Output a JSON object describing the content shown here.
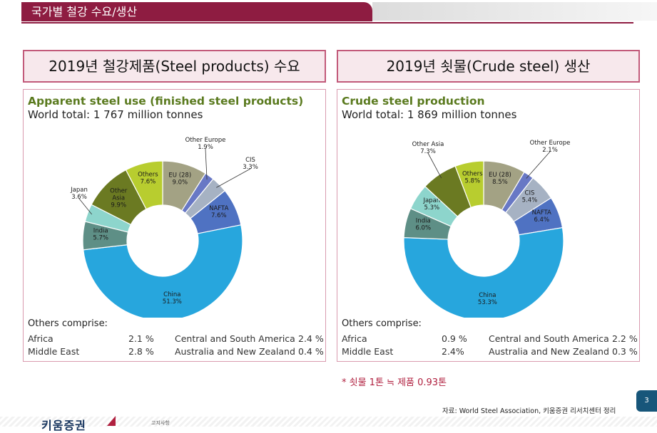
{
  "header": {
    "title": "국가별 철강 수요/생산"
  },
  "left_box_title": "2019년 철강제품(Steel products) 수요",
  "right_box_title": "2019년 쇳물(Crude steel) 생산",
  "chart_data": [
    {
      "type": "pie",
      "title": "Apparent steel use (finished steel products)",
      "subtitle": "World total: 1 767 million tonnes",
      "slices": [
        {
          "label": "EU (28)",
          "value": 9.0,
          "value_label": "9.0%",
          "color": "#a3a284"
        },
        {
          "label": "Other Europe",
          "value": 1.9,
          "value_label": "1.9%",
          "color": "#6878c5"
        },
        {
          "label": "CIS",
          "value": 3.3,
          "value_label": "3.3%",
          "color": "#a6b2c3"
        },
        {
          "label": "NAFTA",
          "value": 7.6,
          "value_label": "7.6%",
          "color": "#4f72c2"
        },
        {
          "label": "China",
          "value": 51.3,
          "value_label": "51.3%",
          "color": "#27a6dd"
        },
        {
          "label": "India",
          "value": 5.7,
          "value_label": "5.7%",
          "color": "#5e8f86"
        },
        {
          "label": "Japan",
          "value": 3.6,
          "value_label": "3.6%",
          "color": "#8dd5cc"
        },
        {
          "label": "Other Asia",
          "value": 9.9,
          "value_label": "9.9%",
          "color": "#6b7a22"
        },
        {
          "label": "Others",
          "value": 7.6,
          "value_label": "7.6%",
          "color": "#b8cd2f"
        }
      ],
      "others_title": "Others comprise:",
      "others": [
        {
          "name": "Africa",
          "value": "2.1 %"
        },
        {
          "name": "Central and South America",
          "value": "2.4 %"
        },
        {
          "name": "Middle East",
          "value": "2.8 %"
        },
        {
          "name": "Australia and New Zealand",
          "value": "0.4 %"
        }
      ]
    },
    {
      "type": "pie",
      "title": "Crude steel production",
      "subtitle": "World total: 1 869 million tonnes",
      "slices": [
        {
          "label": "EU (28)",
          "value": 8.5,
          "value_label": "8.5%",
          "color": "#a3a284"
        },
        {
          "label": "Other Europe",
          "value": 2.1,
          "value_label": "2.1%",
          "color": "#6878c5"
        },
        {
          "label": "CIS",
          "value": 5.4,
          "value_label": "5.4%",
          "color": "#a6b2c3"
        },
        {
          "label": "NAFTA",
          "value": 6.4,
          "value_label": "6.4%",
          "color": "#4f72c2"
        },
        {
          "label": "China",
          "value": 53.3,
          "value_label": "53.3%",
          "color": "#27a6dd"
        },
        {
          "label": "India",
          "value": 6.0,
          "value_label": "6.0%",
          "color": "#5e8f86"
        },
        {
          "label": "Japan",
          "value": 5.3,
          "value_label": "5.3%",
          "color": "#8dd5cc"
        },
        {
          "label": "Other Asia",
          "value": 7.3,
          "value_label": "7.3%",
          "color": "#6b7a22"
        },
        {
          "label": "Others",
          "value": 5.8,
          "value_label": "5.8%",
          "color": "#b8cd2f"
        }
      ],
      "others_title": "Others comprise:",
      "others": [
        {
          "name": "Africa",
          "value": "0.9 %"
        },
        {
          "name": "Central and South America",
          "value": "2.2 %"
        },
        {
          "name": "Middle East",
          "value": "2.4%"
        },
        {
          "name": "Australia and New Zealand",
          "value": "0.3 %"
        }
      ]
    }
  ],
  "note": "* 쇳물 1톤 ≒ 제품 0.93톤",
  "source": "자료: World Steel Association, 키움증권 리서치센터 정리",
  "page_number": "3",
  "footer": {
    "logo_text": "키움증권",
    "disclaimer_label": "고지사항"
  }
}
